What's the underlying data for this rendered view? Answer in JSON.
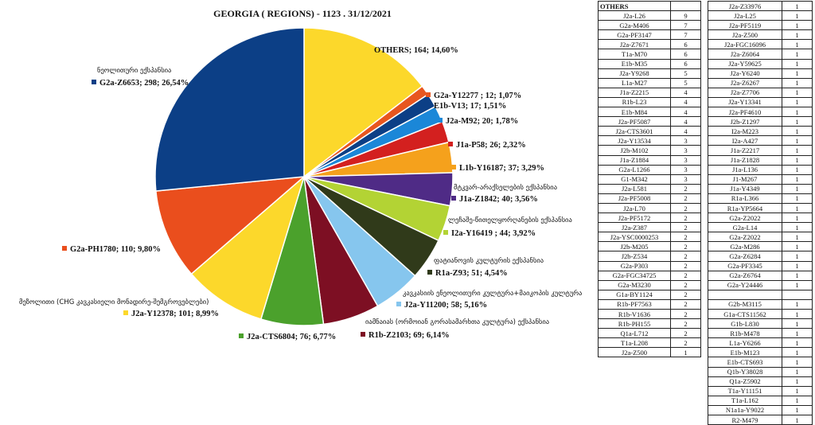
{
  "chart_data": {
    "type": "pie",
    "title": "GEORGIA ( REGIONS) - 1123 . 31/12/2021",
    "slices": [
      {
        "label": "OTHERS; 164; 14,60%",
        "name": "OTHERS",
        "value": 164,
        "percent": 14.6,
        "color": "#fcd82b",
        "caption": ""
      },
      {
        "label": "G2a-Y12277 ; 12; 1,07%",
        "name": "G2a-Y12277",
        "value": 12,
        "percent": 1.07,
        "color": "#e8561f",
        "caption": ""
      },
      {
        "label": "E1b-V13; 17; 1,51%",
        "name": "E1b-V13",
        "value": 17,
        "percent": 1.51,
        "color": "#0c3f86",
        "caption": ""
      },
      {
        "label": "J2a-M92; 20; 1,78%",
        "name": "J2a-M92",
        "value": 20,
        "percent": 1.78,
        "color": "#1b87d8",
        "caption": ""
      },
      {
        "label": "J1a-P58; 26; 2,32%",
        "name": "J1a-P58",
        "value": 26,
        "percent": 2.32,
        "color": "#d3201f",
        "caption": ""
      },
      {
        "label": "L1b-Y16187; 37; 3,29%",
        "name": "L1b-Y16187",
        "value": 37,
        "percent": 3.29,
        "color": "#f5a11c",
        "caption": ""
      },
      {
        "label": "J1a-Z1842; 40; 3,56%",
        "name": "J1a-Z1842",
        "value": 40,
        "percent": 3.56,
        "color": "#4f2b86",
        "caption": "მტკვარ-არაქსელების ექსპანსია"
      },
      {
        "label": "I2a-Y16419 ; 44; 3,92%",
        "name": "I2a-Y16419",
        "value": 44,
        "percent": 3.92,
        "color": "#b3d334",
        "caption": "ლეჩაშე-წითელყორღანების ექსპანსია"
      },
      {
        "label": "R1a-Z93; 51; 4,54%",
        "name": "R1a-Z93",
        "value": 51,
        "percent": 4.54,
        "color": "#303a1a",
        "caption": "ფატიანოვის კულტურის ექსპანსია"
      },
      {
        "label": "J2a-Y11200; 58; 5,16%",
        "name": "J2a-Y11200",
        "value": 58,
        "percent": 5.16,
        "color": "#86c6ee",
        "caption": "კავკასიის ენეოლითური კულტურა+მაიკოპის კულტურა"
      },
      {
        "label": "R1b-Z2103; 69; 6,14%",
        "name": "R1b-Z2103",
        "value": 69,
        "percent": 6.14,
        "color": "#7d0f23",
        "caption": "იამნაიას (ორმოიან გორასამარხთა კულტურა) ექსპანსია"
      },
      {
        "label": "J2a-CTS6804; 76; 6,77%",
        "name": "J2a-CTS6804",
        "value": 76,
        "percent": 6.77,
        "color": "#4ba12c",
        "caption": ""
      },
      {
        "label": "J2a-Y12378; 101; 8,99%",
        "name": "J2a-Y12378",
        "value": 101,
        "percent": 8.99,
        "color": "#fcd82b",
        "caption": "მეზოლითი (CHG კავკასიელი მონადირე-შემგროვებლები)"
      },
      {
        "label": "G2a-PH1780; 110; 9,80%",
        "name": "G2a-PH1780",
        "value": 110,
        "percent": 9.8,
        "color": "#ea4e1d",
        "caption": ""
      },
      {
        "label": "G2a-Z6653; 298; 26,54%",
        "name": "G2a-Z6653",
        "value": 298,
        "percent": 26.54,
        "color": "#0c3f86",
        "caption": "ნეოლითური ექსპანსია"
      }
    ],
    "others_table": {
      "header": "OTHERS",
      "col1": [
        [
          "J2a-L26",
          "9"
        ],
        [
          "G2a-M406",
          "7"
        ],
        [
          "G2a-PF3147",
          "7"
        ],
        [
          "J2a-Z7671",
          "6"
        ],
        [
          "T1a-M70",
          "6"
        ],
        [
          "E1b-M35",
          "6"
        ],
        [
          "J2a-Y9268",
          "5"
        ],
        [
          "L1a-M27",
          "5"
        ],
        [
          "J1a-Z2215",
          "4"
        ],
        [
          "R1b-L23",
          "4"
        ],
        [
          "E1b-M84",
          "4"
        ],
        [
          "J2a-PF5087",
          "4"
        ],
        [
          "J2a-CTS3601",
          "4"
        ],
        [
          "J2a-Y13534",
          "3"
        ],
        [
          "J2b-M102",
          "3"
        ],
        [
          "J1a-Z1884",
          "3"
        ],
        [
          "G2a-L1266",
          "3"
        ],
        [
          "G1-M342",
          "3"
        ],
        [
          "J2a-L581",
          "2"
        ],
        [
          "J2a-PF5008",
          "2"
        ],
        [
          "J2a-L70",
          "2"
        ],
        [
          "J2a-PF5172",
          "2"
        ],
        [
          "J2a-Z387",
          "2"
        ],
        [
          "J2a-YSC0000253",
          "2"
        ],
        [
          "J2b-M205",
          "2"
        ],
        [
          "J2b-Z534",
          "2"
        ],
        [
          "G2a-P303",
          "2"
        ],
        [
          "G2a-FGC34725",
          "2"
        ],
        [
          "G2a-M3230",
          "2"
        ],
        [
          "G1a-BY1124",
          "2"
        ],
        [
          "R1b-PF7563",
          "2"
        ],
        [
          "R1b-V1636",
          "2"
        ],
        [
          "R1b-PH155",
          "2"
        ],
        [
          "Q1a-L712",
          "2"
        ],
        [
          "T1a-L208",
          "2"
        ],
        [
          "J2a-Z500",
          "1"
        ]
      ],
      "col2": [
        [
          "J2a-Z33976",
          "1"
        ],
        [
          "J2a-L25",
          "1"
        ],
        [
          "J2a-PF5119",
          "1"
        ],
        [
          "J2a-Z500",
          "1"
        ],
        [
          "J2a-FGC16096",
          "1"
        ],
        [
          "J2a-Z6064",
          "1"
        ],
        [
          "J2a-Y59625",
          "1"
        ],
        [
          "J2a-Y6240",
          "1"
        ],
        [
          "J2a-Z6267",
          "1"
        ],
        [
          "J2a-Z7706",
          "1"
        ],
        [
          "J2a-Y13341",
          "1"
        ],
        [
          "J2a-PF4610",
          "1"
        ],
        [
          "J2b-Z1297",
          "1"
        ],
        [
          "I2a-M223",
          "1"
        ],
        [
          "I2a-A427",
          "1"
        ],
        [
          "J1a-Z2217",
          "1"
        ],
        [
          "J1a-Z1828",
          "1"
        ],
        [
          "J1a-L136",
          "1"
        ],
        [
          "J1-M267",
          "1"
        ],
        [
          "J1a-Y4349",
          "1"
        ],
        [
          "R1a-L366",
          "1"
        ],
        [
          "R1a-YP5664",
          "1"
        ],
        [
          "G2a-Z2022",
          "1"
        ],
        [
          "G2a-L14",
          "1"
        ],
        [
          "G2a-Z2022",
          "1"
        ],
        [
          "G2a-M286",
          "1"
        ],
        [
          "G2a-Z6284",
          "1"
        ],
        [
          "G2a-PF3345",
          "1"
        ],
        [
          "G2a-Z6764",
          "1"
        ],
        [
          "G2a-Y24446",
          "1"
        ],
        [
          "",
          ""
        ],
        [
          "G2b-M3115",
          "1"
        ],
        [
          "G1a-CTS11562",
          "1"
        ],
        [
          "G1b-L830",
          "1"
        ],
        [
          "R1b-M478",
          "1"
        ],
        [
          "L1a-Y6266",
          "1"
        ],
        [
          "E1b-M123",
          "1"
        ],
        [
          "E1b-CTS693",
          "1"
        ],
        [
          "Q1b-Y38028",
          "1"
        ],
        [
          "Q1a-Z5902",
          "1"
        ],
        [
          "T1a-Y11151",
          "1"
        ],
        [
          "T1a-L162",
          "1"
        ],
        [
          "N1a1a-Y9022",
          "1"
        ],
        [
          "R2-M479",
          "1"
        ]
      ]
    }
  }
}
